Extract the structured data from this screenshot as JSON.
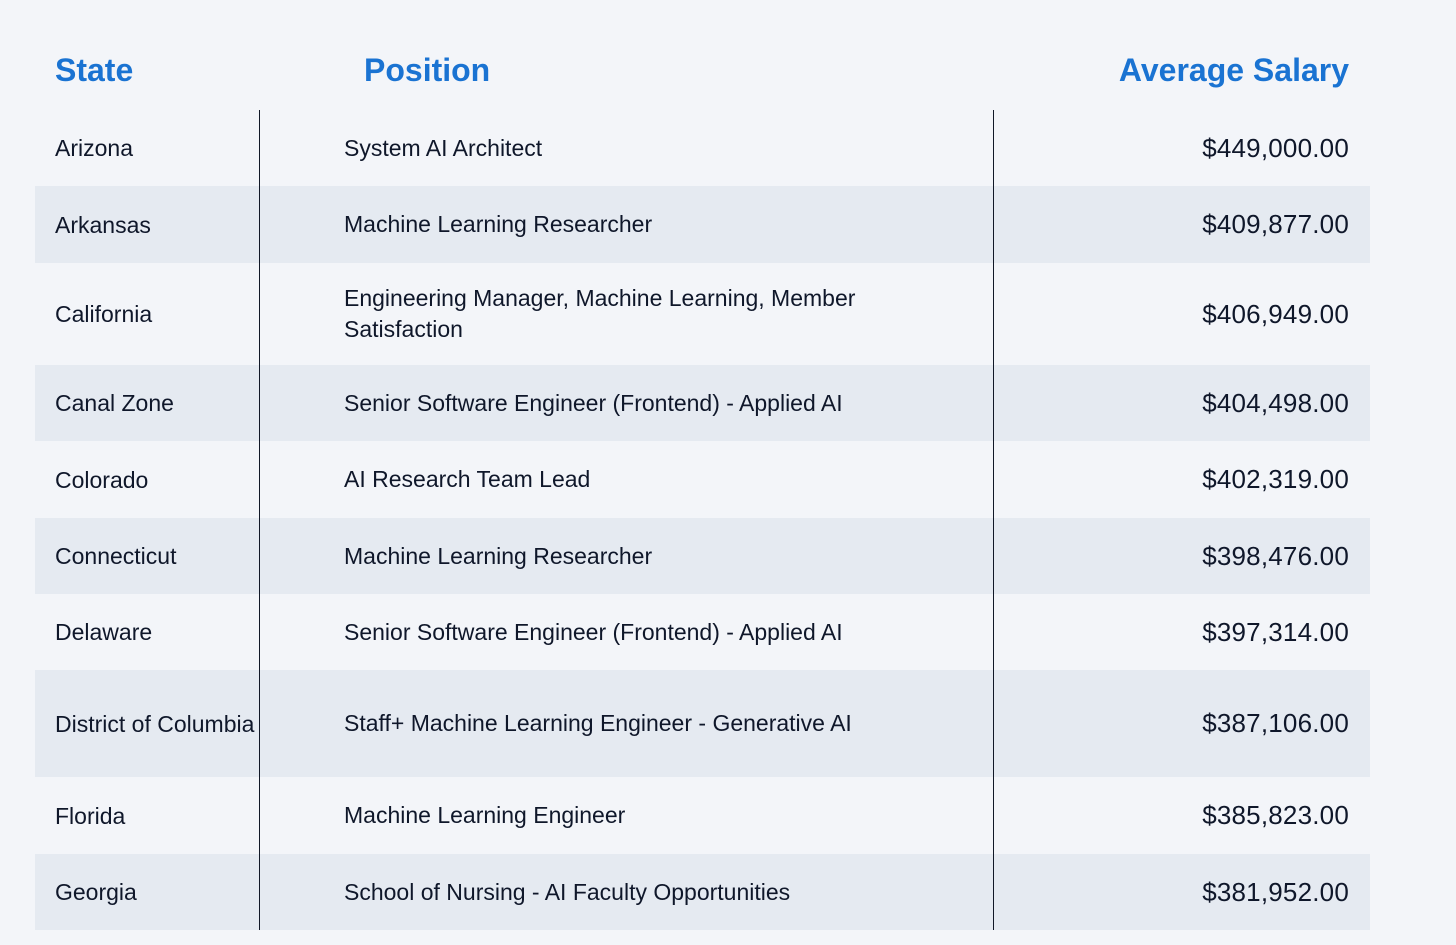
{
  "table": {
    "headers": {
      "state": "State",
      "position": "Position",
      "salary": "Average Salary"
    },
    "rows": [
      {
        "state": "Arizona",
        "position": "System AI Architect",
        "salary": "$449,000.00"
      },
      {
        "state": "Arkansas",
        "position": "Machine Learning Researcher",
        "salary": "$409,877.00"
      },
      {
        "state": "California",
        "position": "Engineering Manager, Machine Learning, Member Satisfaction",
        "salary": "$406,949.00"
      },
      {
        "state": "Canal Zone",
        "position": "Senior Software Engineer (Frontend) - Applied AI",
        "salary": "$404,498.00"
      },
      {
        "state": "Colorado",
        "position": "AI Research Team Lead",
        "salary": "$402,319.00"
      },
      {
        "state": "Connecticut",
        "position": "Machine Learning Researcher",
        "salary": "$398,476.00"
      },
      {
        "state": "Delaware",
        "position": "Senior Software Engineer (Frontend) - Applied AI",
        "salary": "$397,314.00"
      },
      {
        "state": "District of Columbia",
        "position": "Staff+ Machine Learning Engineer - Generative AI",
        "salary": "$387,106.00"
      },
      {
        "state": "Florida",
        "position": "Machine Learning Engineer",
        "salary": "$385,823.00"
      },
      {
        "state": "Georgia",
        "position": "School of Nursing - AI Faculty Opportunities",
        "salary": "$381,952.00"
      }
    ]
  },
  "colors": {
    "header_text": "#1a73d2",
    "row_alt_bg": "#e5eaf1",
    "page_bg": "#f3f5f9"
  }
}
